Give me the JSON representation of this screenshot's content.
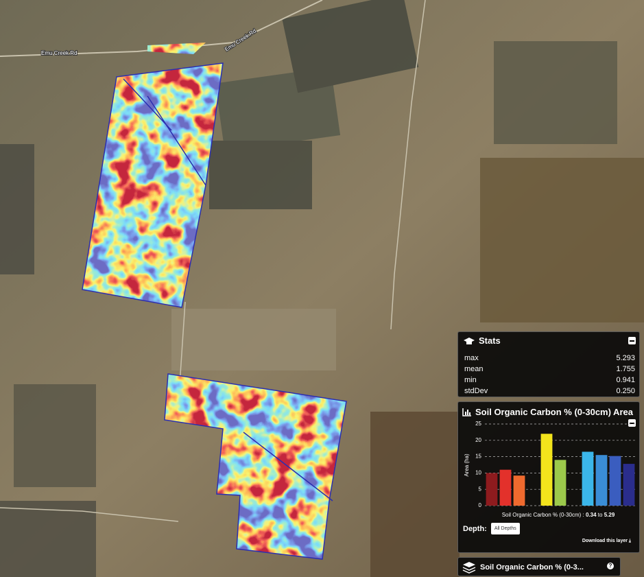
{
  "map": {
    "road_labels": [
      "Emu Creek Rd",
      "Emu Creek Rd"
    ]
  },
  "stats": {
    "title": "Stats",
    "rows": [
      [
        "max",
        "5.293"
      ],
      [
        "mean",
        "1.755"
      ],
      [
        "min",
        "0.941"
      ],
      [
        "stdDev",
        "0.250"
      ]
    ]
  },
  "chart_data": {
    "type": "bar",
    "title": "Soil Organic Carbon % (0-30cm) Area",
    "y_label": "Area (ha)",
    "x_label": "Soil Organic Carbon % (0-30cm) :",
    "x_range": {
      "min": 0.34,
      "to": "to",
      "max": 5.29
    },
    "categories": [
      null,
      null,
      null,
      null,
      null,
      null,
      null,
      null,
      null,
      null,
      null
    ],
    "values": [
      10,
      11,
      9.2,
      null,
      22,
      14,
      null,
      16.5,
      15.5,
      15.2,
      12.8
    ],
    "colors": [
      "#8e1b1e",
      "#e3312b",
      "#ef6a2e",
      null,
      "#f3e41c",
      "#9cc94b",
      null,
      "#3bb6e9",
      "#3a8dd6",
      "#3a5dbf",
      "#2a2d8c"
    ],
    "ylim": [
      0,
      25
    ],
    "yticks": [
      0,
      5,
      10,
      15,
      20,
      25
    ],
    "grid": true
  },
  "depth": {
    "label": "Depth:",
    "button": "All Depths"
  },
  "download": "Download this layer",
  "layer": {
    "title": "Soil Organic Carbon % (0-3..."
  }
}
